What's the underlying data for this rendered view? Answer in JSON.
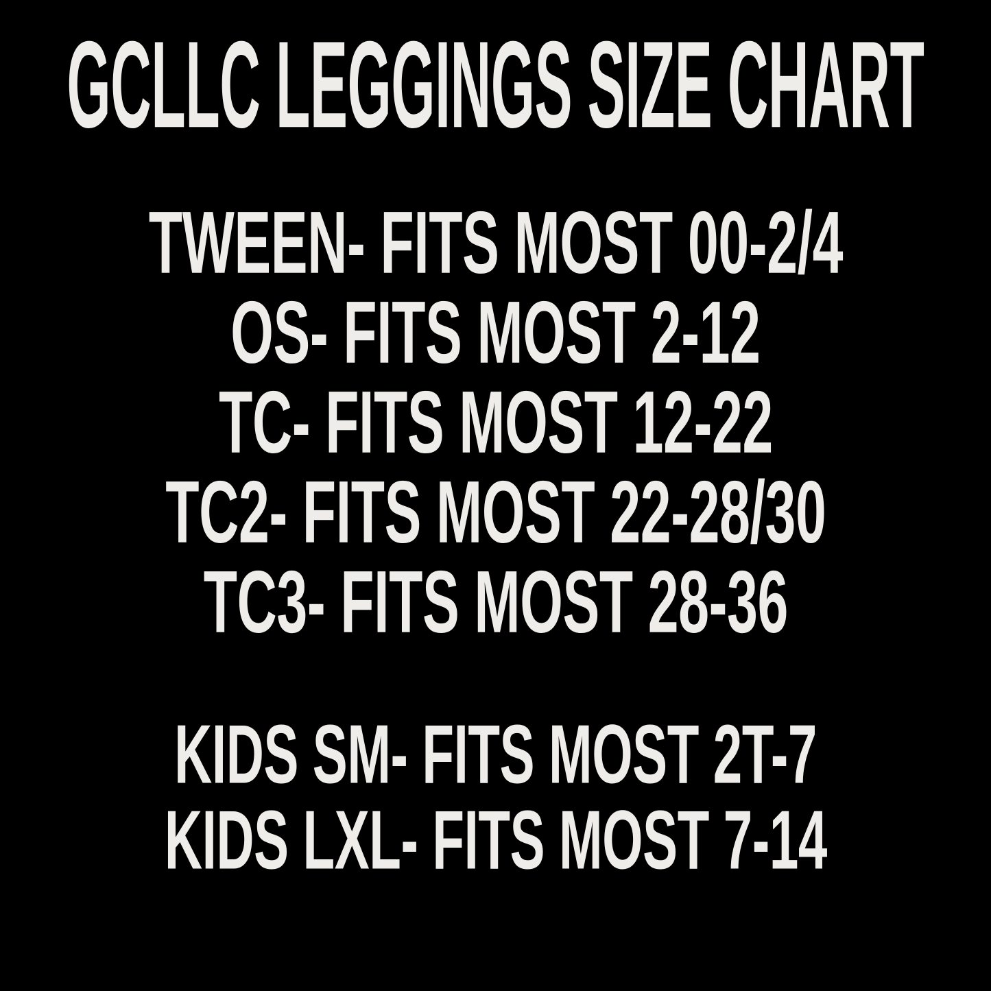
{
  "page": {
    "background_color": "#000000",
    "text_color": "#efede9"
  },
  "title": "GCLLC LEGGINGS SIZE CHART",
  "lines": {
    "adult": [
      "TWEEN- FITS MOST 00-2/4",
      "OS- FITS MOST 2-12",
      "TC- FITS MOST 12-22",
      "TC2- FITS MOST 22-28/30",
      "TC3- FITS MOST 28-36"
    ],
    "kids": [
      "KIDS SM- FITS MOST 2T-7",
      "KIDS LXL- FITS MOST 7-14"
    ]
  },
  "chart_data": {
    "type": "table",
    "title": "GCLLC LEGGINGS SIZE CHART",
    "columns": [
      "size",
      "fits_most"
    ],
    "rows": [
      {
        "size": "TWEEN",
        "fits_most": "00-2/4"
      },
      {
        "size": "OS",
        "fits_most": "2-12"
      },
      {
        "size": "TC",
        "fits_most": "12-22"
      },
      {
        "size": "TC2",
        "fits_most": "22-28/30"
      },
      {
        "size": "TC3",
        "fits_most": "28-36"
      },
      {
        "size": "KIDS SM",
        "fits_most": "2T-7"
      },
      {
        "size": "KIDS LXL",
        "fits_most": "7-14"
      }
    ]
  }
}
